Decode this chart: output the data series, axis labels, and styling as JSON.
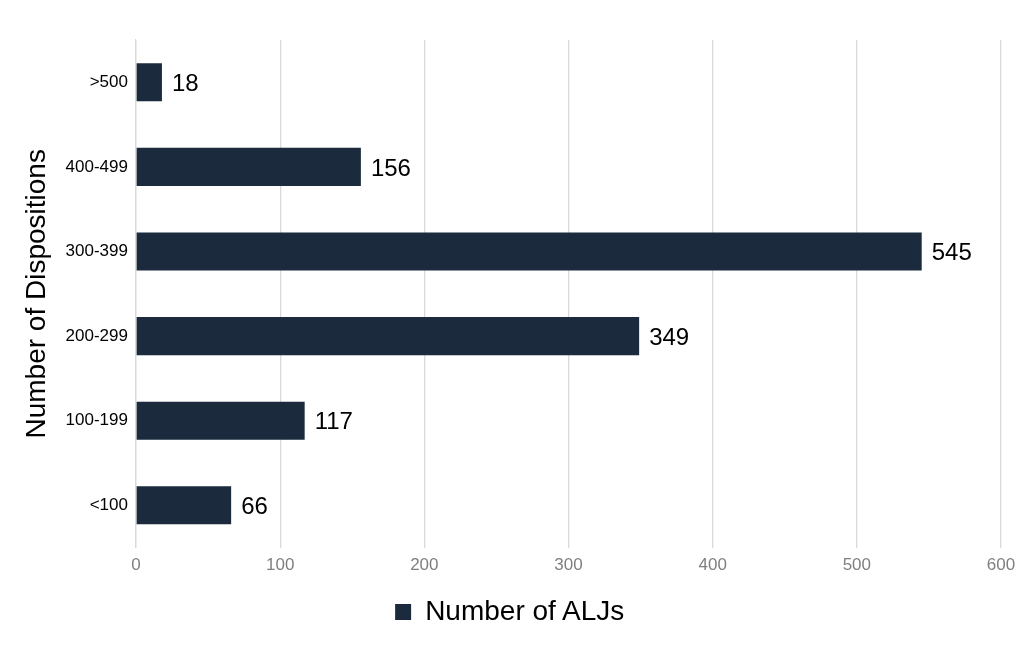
{
  "chart_data": {
    "type": "bar",
    "orientation": "horizontal",
    "ylabel": "Number of Dispositions",
    "categories": [
      ">500",
      "400-499",
      "300-399",
      "200-299",
      "100-199",
      "<100"
    ],
    "series": [
      {
        "name": "Number of ALJs",
        "color": "#1b2a3c",
        "values": [
          18,
          156,
          545,
          349,
          117,
          66
        ]
      }
    ],
    "xlim": [
      0,
      600
    ],
    "xticks": [
      0,
      100,
      200,
      300,
      400,
      500,
      600
    ],
    "grid": "x",
    "legend": "bottom",
    "data_labels": true
  }
}
